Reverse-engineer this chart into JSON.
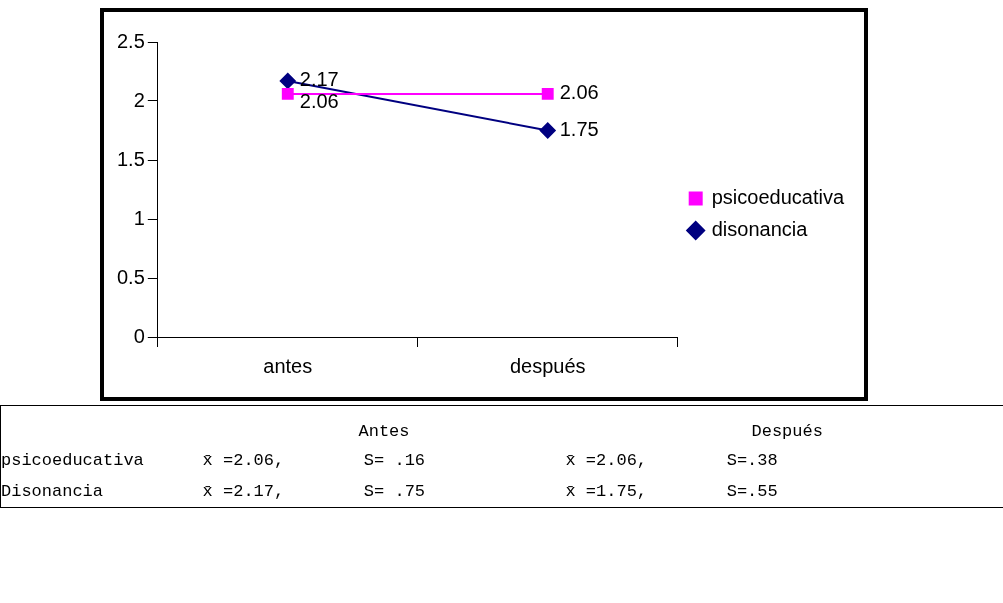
{
  "chart_data": {
    "type": "line",
    "categories": [
      "antes",
      "después"
    ],
    "series": [
      {
        "name": "psicoeducativa",
        "color": "#ff00ff",
        "values": [
          2.06,
          2.06
        ],
        "marker": "square"
      },
      {
        "name": "disonancia",
        "color": "#000080",
        "values": [
          2.17,
          1.75
        ],
        "marker": "diamond"
      }
    ],
    "ylim": [
      0,
      2.5
    ],
    "yticks": [
      0,
      0.5,
      1,
      1.5,
      2,
      2.5
    ],
    "grid": false,
    "legend": "right",
    "data_labels": true,
    "annotations": [
      "Antes",
      "Después",
      "psicoeducativa",
      "x̄ =2.06,",
      "S= .16",
      "x̄ =2.06,",
      "S=.38",
      "Disonancia",
      "x̄ =2.17,",
      "S= .75",
      "x̄ =1.75,",
      "S=.55"
    ]
  }
}
